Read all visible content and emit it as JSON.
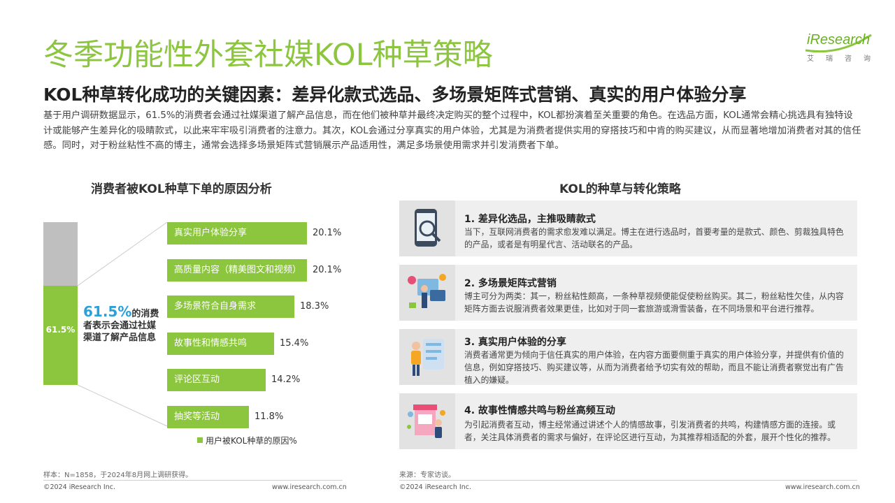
{
  "header": {
    "title": "冬季功能性外套社媒KOL种草策略",
    "logo_text": "iResearch",
    "logo_cn": "艾瑞咨询"
  },
  "subtitle": "KOL种草转化成功的关键因素：差异化款式选品、多场景矩阵式营销、真实的用户体验分享",
  "intro": "基于用户调研数据显示，61.5%的消费者会通过社媒渠道了解产品信息，而在他们被种草并最终决定购买的整个过程中，KOL都扮演着至关重要的角色。在选品方面，KOL通常会精心挑选具有独特设计或能够产生差异化的吸睛款式，以此来牢牢吸引消费者的注意力。其次，KOL会通过分享真实的用户体验，尤其是为消费者提供实用的穿搭技巧和中肯的购买建议，从而显著地增加消费者对其的信任感。同时，对于粉丝粘性不高的博主，通常会选择多场景矩阵式营销展示产品适用性，满足多场景使用需求并引发消费者下单。",
  "left_section": {
    "title": "消费者被KOL种草下单的原因分析",
    "stack_label": "61.5%",
    "callout_pct": "61.5%",
    "callout_text": "的消费者表示会通过社媒渠道了解产品信息",
    "footnote": "样本：N=1858，于2024年8月网上调研获得。"
  },
  "chart_data": {
    "type": "bar",
    "orientation": "horizontal",
    "stacked_share": {
      "value": 61.5,
      "unit": "%"
    },
    "categories": [
      "真实用户体验分享",
      "高质量内容（精美图文和视频）",
      "多场景符合自身需求",
      "故事性和情感共鸣",
      "评论区互动",
      "抽奖等活动"
    ],
    "series": [
      {
        "name": "用户被KOL种草的原因%",
        "values": [
          20.1,
          20.1,
          18.3,
          15.4,
          14.2,
          11.8
        ],
        "value_labels": [
          "20.1%",
          "20.1%",
          "18.3%",
          "15.4%",
          "14.2%",
          "11.8%"
        ]
      }
    ],
    "legend_position": "bottom",
    "grid": false,
    "colors": {
      "bar": "#8cc63f",
      "stack_rest": "#bfbfbf",
      "callout": "#2aa0d8"
    }
  },
  "right_section": {
    "title": "KOL的种草与转化策略",
    "cards": [
      {
        "title": "1.   差异化选品，主推吸睛款式",
        "text": "当下，互联网消费者的需求愈发难以满足。博主在进行选品时，首要考量的是款式、颜色、剪裁独具特色的产品，或者是有明星代言、活动联名的产品。",
        "icon": "phone-search-icon"
      },
      {
        "title": "2.   多场景矩阵式营销",
        "text": "博主可分为两类：其一，粉丝粘性颇高，一条种草视频便能促使粉丝购买。其二，粉丝粘性欠佳，从内容矩阵方面去说服消费者效果更佳，比如对于同一套旅游或滑雪装备，在不同场景和平台进行推荐。",
        "icon": "multi-platform-icon"
      },
      {
        "title": "3.   真实用户体验的分享",
        "text": "消费者通常更为倾向于信任真实的用户体验，在内容方面要侧重于真实的用户体验分享，并提供有价值的信息，例如穿搭技巧、购买建议等，从而为消费者给予切实有效的帮助，而且不能让消费者察觉出有广告植入的嫌疑。",
        "icon": "user-review-icon"
      },
      {
        "title": "4.   故事性情感共鸣与粉丝高频互动",
        "text": "为引起消费者互动，博主经常通过讲述个人的情感故事，引发消费者的共鸣，构建情感方面的连接。或者，关注具体消费者的需求与偏好，在评论区进行互动，为其推荐相适配的外套，展开个性化的推荐。",
        "icon": "social-shop-icon"
      }
    ],
    "footnote": "来源：专家访谈。"
  },
  "footer": {
    "copyright_left": "©2024 iResearch Inc.",
    "url_left": "www.iresearch.com.cn",
    "copyright_right": "©2024 iResearch Inc.",
    "url_right": "www.iresearch.com.cn"
  }
}
